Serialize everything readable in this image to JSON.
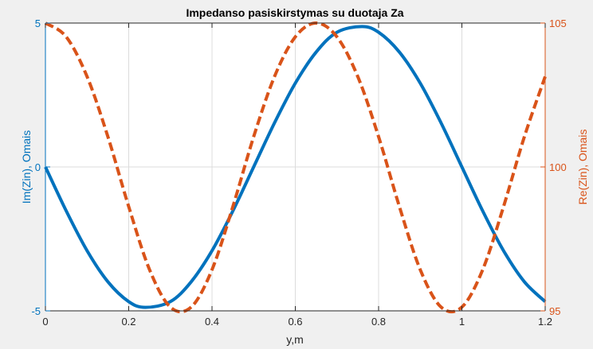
{
  "colors": {
    "figure_background": "#f0f0f0",
    "axes_background": "#ffffff",
    "grid": "#dcdcdc",
    "left_axis": "#0072bd",
    "right_axis": "#d95319",
    "x_axis": "#262626",
    "title": "#000000"
  },
  "chart_data": {
    "type": "line",
    "title": "Impedanso pasiskirstymas su duotaja Za",
    "xlabel": "y,m",
    "ylabel_left": "Im(Zin), Omais",
    "ylabel_right": "Re(Zin), Omais",
    "xlim": [
      0,
      1.2
    ],
    "ylim_left": [
      -5,
      5
    ],
    "ylim_right": [
      95,
      105
    ],
    "x_ticks": [
      0,
      0.2,
      0.4,
      0.6,
      0.8,
      1,
      1.2
    ],
    "x_tick_labels": [
      "0",
      "0.2",
      "0.4",
      "0.6",
      "0.8",
      "1",
      "1.2"
    ],
    "left_ticks": [
      -5,
      0,
      5
    ],
    "left_tick_labels": [
      "-5",
      "0",
      "5"
    ],
    "right_ticks": [
      95,
      100,
      105
    ],
    "right_tick_labels": [
      "95",
      "100",
      "105"
    ],
    "grid": true,
    "legend": "none",
    "series": [
      {
        "axis": "left",
        "style": "solid",
        "color": "#0072bd",
        "x": [
          0,
          0.05,
          0.1,
          0.15,
          0.2,
          0.24,
          0.3,
          0.35,
          0.4,
          0.45,
          0.5,
          0.55,
          0.6,
          0.65,
          0.7,
          0.76,
          0.8,
          0.85,
          0.9,
          0.95,
          1.0,
          1.05,
          1.1,
          1.15,
          1.2
        ],
        "values": [
          0,
          -1.53,
          -2.91,
          -3.99,
          -4.68,
          -4.88,
          -4.68,
          -3.99,
          -2.91,
          -1.53,
          0,
          1.53,
          2.91,
          3.99,
          4.68,
          4.88,
          4.68,
          3.99,
          2.91,
          1.53,
          0,
          -1.53,
          -2.91,
          -3.99,
          -4.68
        ]
      },
      {
        "axis": "right",
        "style": "dashed",
        "color": "#d95319",
        "x": [
          0,
          0.05,
          0.1,
          0.15,
          0.2,
          0.25,
          0.3,
          0.35,
          0.4,
          0.45,
          0.5,
          0.55,
          0.6,
          0.65,
          0.7,
          0.75,
          0.8,
          0.85,
          0.9,
          0.95,
          1.0,
          1.05,
          1.1,
          1.15,
          1.2
        ],
        "values": [
          105,
          104.52,
          103.14,
          101.05,
          98.62,
          96.43,
          95.13,
          95.13,
          96.43,
          98.62,
          101.05,
          103.14,
          104.52,
          105,
          104.52,
          103.14,
          101.05,
          98.62,
          96.43,
          95.13,
          95.13,
          96.43,
          98.62,
          101.05,
          103.14
        ]
      }
    ]
  }
}
